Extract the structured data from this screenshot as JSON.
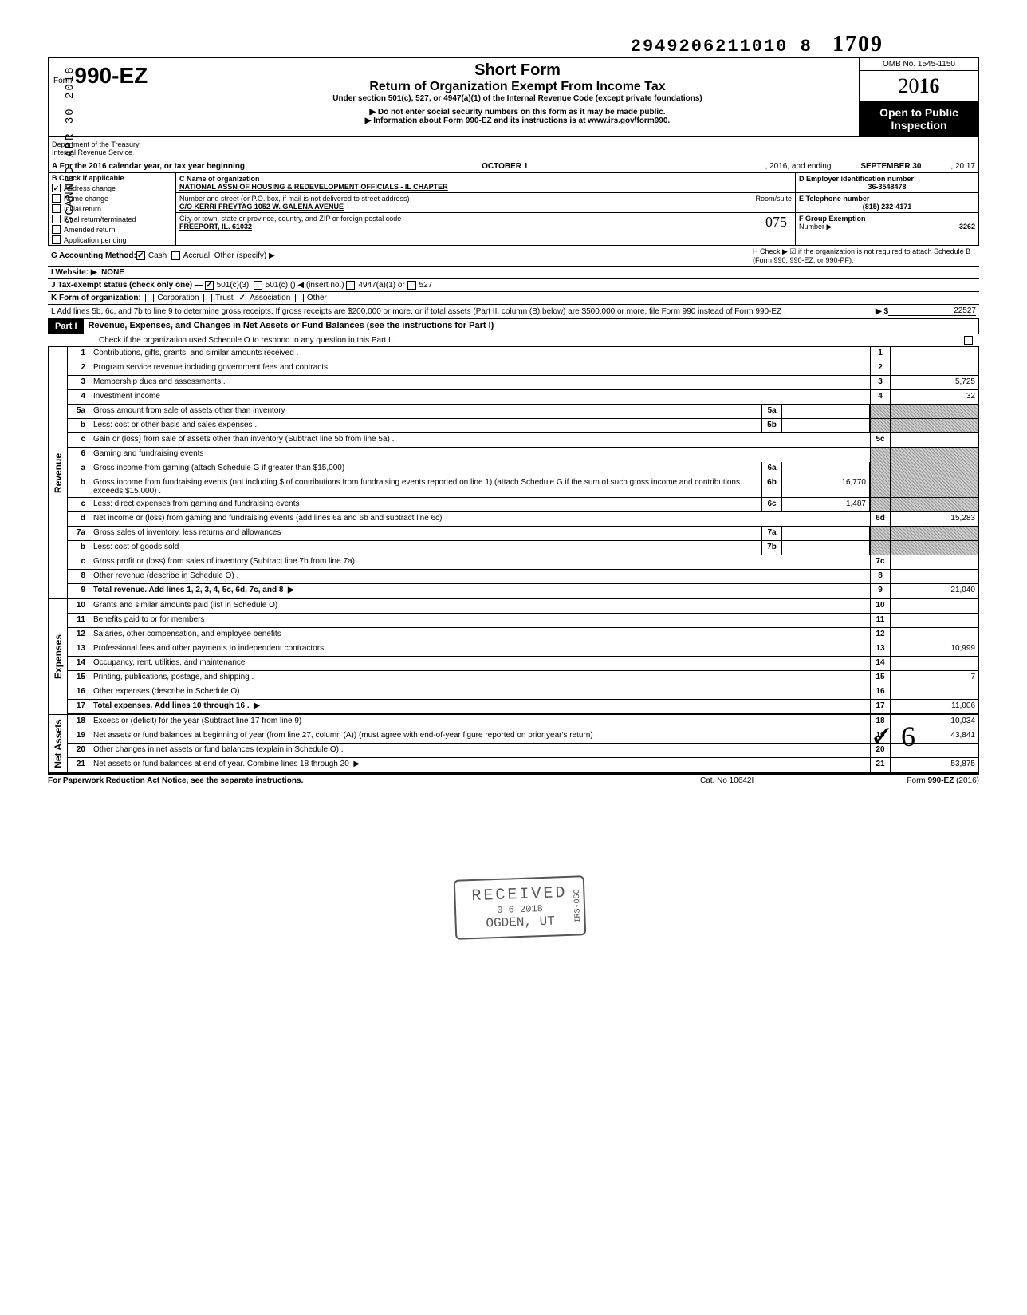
{
  "doc_number": "2949206211010  8",
  "handwritten_topright": "1709",
  "vertical_stamp": "SCANNED APR 30 2018",
  "header": {
    "form_prefix": "Form",
    "form_number": "990-EZ",
    "title_main": "Short Form",
    "title_sub": "Return of Organization Exempt From Income Tax",
    "title_small": "Under section 501(c), 527, or 4947(a)(1) of the Internal Revenue Code (except private foundations)",
    "line2": "▶ Do not enter social security numbers on this form as it may be made public.",
    "line3": "▶ Information about Form 990-EZ and its instructions is at www.irs.gov/form990.",
    "omb": "OMB No. 1545-1150",
    "year_prefix": "20",
    "year_bold": "16",
    "open_public": "Open to Public Inspection",
    "dept": "Department of the Treasury",
    "irs": "Internal Revenue Service"
  },
  "row_a": {
    "label": "A For the 2016 calendar year, or tax year beginning",
    "begin": "OCTOBER 1",
    "mid": ", 2016, and ending",
    "end": "SEPTEMBER 30",
    "yr_suffix": ", 20  17"
  },
  "section_b": {
    "label": "B  Check if applicable",
    "items": [
      {
        "checked": true,
        "label": "Address change"
      },
      {
        "checked": false,
        "label": "Name change"
      },
      {
        "checked": false,
        "label": "Initial return"
      },
      {
        "checked": false,
        "label": "Final return/terminated"
      },
      {
        "checked": false,
        "label": "Amended return"
      },
      {
        "checked": false,
        "label": "Application pending"
      }
    ]
  },
  "section_c": {
    "label": "C  Name of organization",
    "org_name": "NATIONAL ASSN OF HOUSING & REDEVELOPMENT OFFICIALS - IL CHAPTER",
    "addr_label": "Number and street (or P.O. box, if mail is not delivered to street address)",
    "room_label": "Room/suite",
    "addr_line": "C/O  KERRI FREYTAG      1052 W. GALENA AVENUE",
    "city_label": "City or town, state or province, country, and ZIP or foreign postal code",
    "city_line": "FREEPORT,        IL.     61032",
    "initials": "075"
  },
  "section_d": {
    "label": "D  Employer identification number",
    "value": "36-3548478"
  },
  "section_e": {
    "label": "E  Telephone number",
    "value": "(815) 232-4171"
  },
  "section_f": {
    "label": "F  Group Exemption",
    "sub": "Number ▶",
    "value": "3262"
  },
  "row_g": {
    "label": "G  Accounting Method:",
    "cash": "Cash",
    "accrual": "Accrual",
    "other": "Other (specify) ▶"
  },
  "row_h": {
    "text": "H  Check ▶ ☑ if the organization is not required to attach Schedule B (Form 990, 990-EZ, or 990-PF)."
  },
  "row_i": {
    "label": "I   Website: ▶",
    "value": "NONE"
  },
  "row_j": {
    "label": "J  Tax-exempt status (check only one) —",
    "opt1": "501(c)(3)",
    "opt2": "501(c) (",
    "opt2b": ") ◀ (insert no.)",
    "opt3": "4947(a)(1) or",
    "opt4": "527"
  },
  "row_k": {
    "label": "K  Form of organization:",
    "opts": [
      "Corporation",
      "Trust",
      "Association",
      "Other"
    ]
  },
  "row_l": {
    "text": "L  Add lines 5b, 6c, and 7b to line 9 to determine gross receipts. If gross receipts are $200,000 or more, or if total assets (Part II, column (B) below) are $500,000 or more, file Form 990 instead of Form 990-EZ .",
    "arrow": "▶   $",
    "value": "22527"
  },
  "part1": {
    "tag": "Part I",
    "title": "Revenue, Expenses, and Changes in Net Assets or Fund Balances (see the instructions for Part I)",
    "check_line": "Check if the organization used Schedule O to respond to any question in this Part I ."
  },
  "revenue_rows": [
    {
      "n": "1",
      "desc": "Contributions, gifts, grants, and similar amounts received .",
      "rn": "1",
      "rv": ""
    },
    {
      "n": "2",
      "desc": "Program service revenue including government fees and contracts",
      "rn": "2",
      "rv": ""
    },
    {
      "n": "3",
      "desc": "Membership dues and assessments .",
      "rn": "3",
      "rv": "5,725"
    },
    {
      "n": "4",
      "desc": "Investment income",
      "rn": "4",
      "rv": "32"
    },
    {
      "n": "5a",
      "desc": "Gross amount from sale of assets other than inventory",
      "mn": "5a",
      "mv": "",
      "shaded": true
    },
    {
      "n": "b",
      "desc": "Less: cost or other basis and sales expenses .",
      "mn": "5b",
      "mv": "",
      "shaded": true
    },
    {
      "n": "c",
      "desc": "Gain or (loss) from sale of assets other than inventory (Subtract line 5b from line 5a) .",
      "rn": "5c",
      "rv": ""
    },
    {
      "n": "6",
      "desc": "Gaming and fundraising events",
      "shaded": true,
      "noborder": true
    },
    {
      "n": "a",
      "desc": "Gross income from gaming (attach Schedule G if greater than $15,000) .",
      "mn": "6a",
      "mv": "",
      "shaded": true
    },
    {
      "n": "b",
      "desc": "Gross income from fundraising events (not including  $                       of contributions from fundraising events reported on line 1) (attach Schedule G if the sum of such gross income and contributions exceeds $15,000) .",
      "mn": "6b",
      "mv": "16,770",
      "shaded": true
    },
    {
      "n": "c",
      "desc": "Less: direct expenses from gaming and fundraising events",
      "mn": "6c",
      "mv": "1,487",
      "shaded": true
    },
    {
      "n": "d",
      "desc": "Net income or (loss) from gaming and fundraising events (add lines 6a and 6b and subtract line 6c)",
      "rn": "6d",
      "rv": "15,283"
    },
    {
      "n": "7a",
      "desc": "Gross sales of inventory, less returns and allowances",
      "mn": "7a",
      "mv": "",
      "shaded": true
    },
    {
      "n": "b",
      "desc": "Less: cost of goods sold",
      "mn": "7b",
      "mv": "",
      "shaded": true
    },
    {
      "n": "c",
      "desc": "Gross profit or (loss) from sales of inventory (Subtract line 7b from line 7a)",
      "rn": "7c",
      "rv": ""
    },
    {
      "n": "8",
      "desc": "Other revenue (describe in Schedule O) .",
      "rn": "8",
      "rv": ""
    },
    {
      "n": "9",
      "desc": "Total revenue. Add lines 1, 2, 3, 4, 5c, 6d, 7c, and 8",
      "rn": "9",
      "rv": "21,040",
      "bold": true,
      "arrow": true
    }
  ],
  "expense_rows": [
    {
      "n": "10",
      "desc": "Grants and similar amounts paid (list in Schedule O)",
      "rn": "10",
      "rv": ""
    },
    {
      "n": "11",
      "desc": "Benefits paid to or for members",
      "rn": "11",
      "rv": ""
    },
    {
      "n": "12",
      "desc": "Salaries, other compensation, and employee benefits",
      "rn": "12",
      "rv": ""
    },
    {
      "n": "13",
      "desc": "Professional fees and other payments to independent contractors",
      "rn": "13",
      "rv": "10,999"
    },
    {
      "n": "14",
      "desc": "Occupancy, rent, utilities, and maintenance",
      "rn": "14",
      "rv": ""
    },
    {
      "n": "15",
      "desc": "Printing, publications, postage, and shipping .",
      "rn": "15",
      "rv": "7"
    },
    {
      "n": "16",
      "desc": "Other expenses (describe in Schedule O)",
      "rn": "16",
      "rv": ""
    },
    {
      "n": "17",
      "desc": "Total expenses. Add lines 10 through 16 .",
      "rn": "17",
      "rv": "11,006",
      "bold": true,
      "arrow": true
    }
  ],
  "netasset_rows": [
    {
      "n": "18",
      "desc": "Excess or (deficit) for the year (Subtract line 17 from line 9)",
      "rn": "18",
      "rv": "10,034"
    },
    {
      "n": "19",
      "desc": "Net assets or fund balances at beginning of year (from line 27, column (A)) (must agree with end-of-year figure reported on prior year's return)",
      "rn": "19",
      "rv": "43,841",
      "shaded": true
    },
    {
      "n": "20",
      "desc": "Other changes in net assets or fund balances (explain in Schedule O) .",
      "rn": "20",
      "rv": ""
    },
    {
      "n": "21",
      "desc": "Net assets or fund balances at end of year. Combine lines 18 through 20",
      "rn": "21",
      "rv": "53,875",
      "arrow": true
    }
  ],
  "stamp": {
    "line1": "RECEIVED",
    "line2": "0 6  2018",
    "line3": "OGDEN, UT",
    "side": "IRS-OSC"
  },
  "footer": {
    "left": "For Paperwork Reduction Act Notice, see the separate instructions.",
    "mid": "Cat. No  10642I",
    "right": "Form 990-EZ (2016)"
  },
  "bottom_mark": "✓  6",
  "side_labels": {
    "revenue": "Revenue",
    "expenses": "Expenses",
    "netassets": "Net Assets"
  }
}
